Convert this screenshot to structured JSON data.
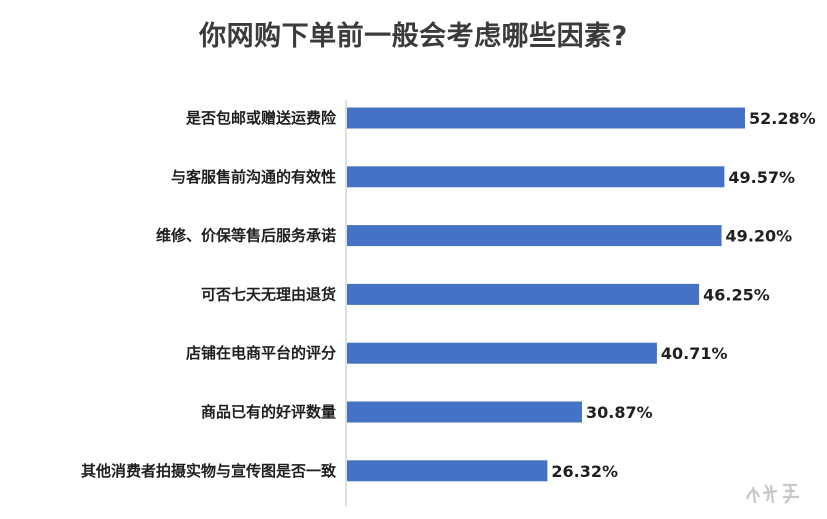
{
  "title": "你网购下单前一般会考虑哪些因素?",
  "chart_data": {
    "type": "bar",
    "orientation": "horizontal",
    "title": "你网购下单前一般会考虑哪些因素?",
    "categories": [
      "是否包邮或赠送运费险",
      "与客服售前沟通的有效性",
      "维修、价保等售后服务承诺",
      "可否七天无理由退货",
      "店铺在电商平台的评分",
      "商品已有的好评数量",
      "其他消费者拍摄实物与宣传图是否一致"
    ],
    "values": [
      52.28,
      49.57,
      49.2,
      46.25,
      40.71,
      30.87,
      26.32
    ],
    "value_labels": [
      "52.28%",
      "49.57%",
      "49.20%",
      "46.25%",
      "40.71%",
      "30.87%",
      "26.32%"
    ],
    "xlabel": "",
    "ylabel": "",
    "xlim": [
      0,
      52.28
    ],
    "grid": false,
    "bar_color": "#4472c4"
  },
  "watermark": {
    "text": "大美号",
    "icon": "watermark-logo-icon"
  }
}
